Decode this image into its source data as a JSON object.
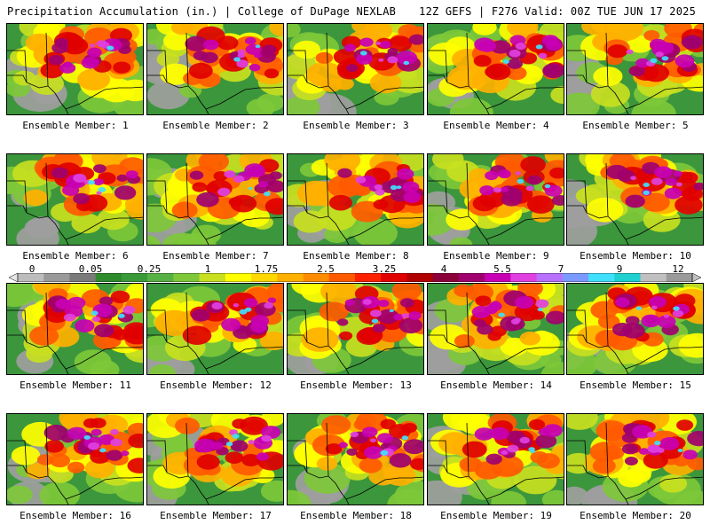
{
  "header": {
    "title_left": "Precipitation Accumulation (in.) | College of DuPage NEXLAB",
    "title_right": "12Z GEFS | F276 Valid: 00Z TUE JUN 17 2025"
  },
  "colors": {
    "palette": [
      "#bdbdbd",
      "#9a9a9a",
      "#7a7a7a",
      "#2e8b2e",
      "#3a9a3a",
      "#57b043",
      "#7ec83a",
      "#c8e020",
      "#ffff00",
      "#ffd800",
      "#ffb000",
      "#ff8c00",
      "#ff5a00",
      "#ff2000",
      "#e00000",
      "#b00000",
      "#8c003a",
      "#a0006e",
      "#c800b4",
      "#e040e0",
      "#b870ff",
      "#7a9aff",
      "#40e0ff",
      "#1ed0d0",
      "#c0c0c0",
      "#9a9a9a"
    ]
  },
  "legend": {
    "ticks": [
      "0",
      "0.05",
      "0.25",
      "1",
      "1.75",
      "2.5",
      "3.25",
      "4",
      "5.5",
      "7",
      "9",
      "12"
    ]
  },
  "panels": [
    {
      "label": "Ensemble Member: 1"
    },
    {
      "label": "Ensemble Member: 2"
    },
    {
      "label": "Ensemble Member: 3"
    },
    {
      "label": "Ensemble Member: 4"
    },
    {
      "label": "Ensemble Member: 5"
    },
    {
      "label": "Ensemble Member: 6"
    },
    {
      "label": "Ensemble Member: 7"
    },
    {
      "label": "Ensemble Member: 8"
    },
    {
      "label": "Ensemble Member: 9"
    },
    {
      "label": "Ensemble Member: 10"
    },
    {
      "label": "Ensemble Member: 11"
    },
    {
      "label": "Ensemble Member: 12"
    },
    {
      "label": "Ensemble Member: 13"
    },
    {
      "label": "Ensemble Member: 14"
    },
    {
      "label": "Ensemble Member: 15"
    },
    {
      "label": "Ensemble Member: 16"
    },
    {
      "label": "Ensemble Member: 17"
    },
    {
      "label": "Ensemble Member: 18"
    },
    {
      "label": "Ensemble Member: 19"
    },
    {
      "label": "Ensemble Member: 20"
    }
  ]
}
